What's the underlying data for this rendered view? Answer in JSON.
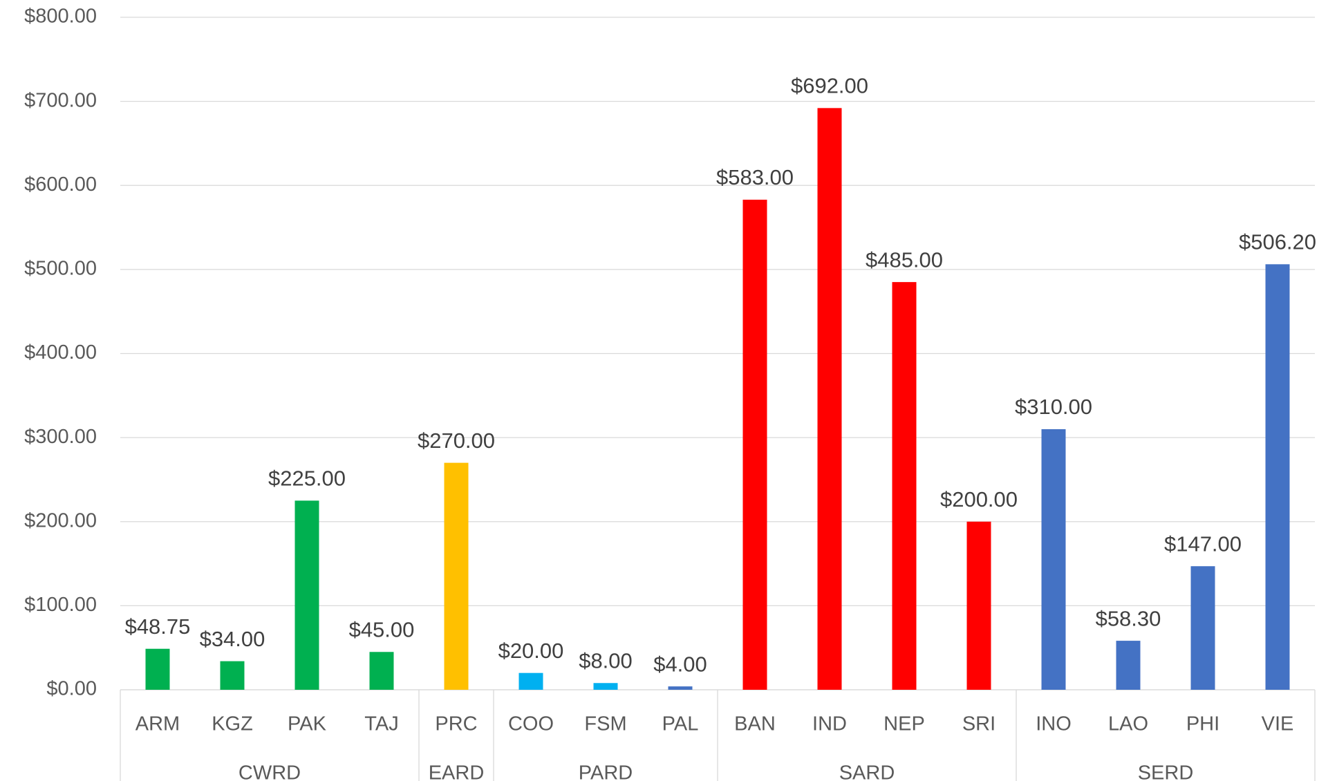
{
  "chart_data": {
    "type": "bar",
    "groups": [
      {
        "name": "CWRD",
        "categories": [
          "ARM",
          "KGZ",
          "PAK",
          "TAJ"
        ]
      },
      {
        "name": "EARD",
        "categories": [
          "PRC"
        ]
      },
      {
        "name": "PARD",
        "categories": [
          "COO",
          "FSM",
          "PAL"
        ]
      },
      {
        "name": "SARD",
        "categories": [
          "BAN",
          "IND",
          "NEP",
          "SRI"
        ]
      },
      {
        "name": "SERD",
        "categories": [
          "INO",
          "LAO",
          "PHI",
          "VIE"
        ]
      }
    ],
    "values": [
      48.75,
      34,
      225,
      45,
      270,
      20,
      8,
      4,
      583,
      692,
      485,
      200,
      310,
      58.3,
      147,
      506.2
    ],
    "value_labels": [
      "$48.75",
      "$34.00",
      "$225.00",
      "$45.00",
      "$270.00",
      "$20.00",
      "$8.00",
      "$4.00",
      "$583.00",
      "$692.00",
      "$485.00",
      "$200.00",
      "$310.00",
      "$58.30",
      "$147.00",
      "$506.20"
    ],
    "colors": [
      "#00b050",
      "#00b050",
      "#00b050",
      "#00b050",
      "#ffc000",
      "#00b0f0",
      "#00b0f0",
      "#4472c4",
      "#ff0000",
      "#ff0000",
      "#ff0000",
      "#ff0000",
      "#4472c4",
      "#4472c4",
      "#4472c4",
      "#4472c4"
    ],
    "ylim": [
      0,
      800
    ],
    "yticks": [
      {
        "value": 0,
        "label": "$0.00"
      },
      {
        "value": 100,
        "label": "$100.00"
      },
      {
        "value": 200,
        "label": "$200.00"
      },
      {
        "value": 300,
        "label": "$300.00"
      },
      {
        "value": 400,
        "label": "$400.00"
      },
      {
        "value": 500,
        "label": "$500.00"
      },
      {
        "value": 600,
        "label": "$600.00"
      },
      {
        "value": 700,
        "label": "$700.00"
      },
      {
        "value": 800,
        "label": "$800.00"
      }
    ],
    "grid": true
  }
}
